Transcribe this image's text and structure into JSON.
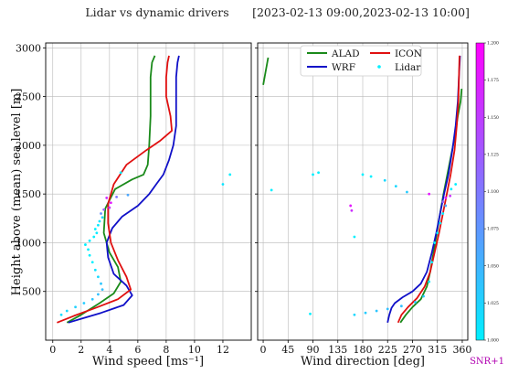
{
  "titles": {
    "left": "Lidar vs dynamic drivers",
    "right": "[2023-02-13 09:00,2023-02-13 10:00]"
  },
  "colors": {
    "ALAD": "#1a8a1a",
    "WRF": "#1010c8",
    "ICON": "#e01010",
    "lidar_low": "#00f0ff",
    "lidar_high": "#ff00ff"
  },
  "chart_data": [
    {
      "type": "line",
      "id": "wind_speed",
      "xlabel": "Wind speed [ms⁻¹]",
      "ylabel": "Height above (mean) sea level [m]",
      "xlim": [
        -0.5,
        14
      ],
      "ylim": [
        0,
        3050
      ],
      "xticks": [
        0,
        2,
        4,
        6,
        8,
        10,
        12
      ],
      "yticks": [
        500,
        1000,
        1500,
        2000,
        2500,
        3000
      ],
      "grid": true,
      "series": [
        {
          "name": "ALAD",
          "points": [
            [
              1.0,
              180
            ],
            [
              2.0,
              260
            ],
            [
              3.3,
              380
            ],
            [
              4.3,
              480
            ],
            [
              4.8,
              600
            ],
            [
              4.6,
              750
            ],
            [
              4.0,
              900
            ],
            [
              3.6,
              1100
            ],
            [
              3.7,
              1350
            ],
            [
              4.4,
              1550
            ],
            [
              5.6,
              1650
            ],
            [
              6.4,
              1700
            ],
            [
              6.7,
              1800
            ],
            [
              6.8,
              2000
            ],
            [
              6.9,
              2300
            ],
            [
              6.9,
              2500
            ],
            [
              6.9,
              2700
            ],
            [
              7.0,
              2850
            ],
            [
              7.2,
              2920
            ]
          ]
        },
        {
          "name": "WRF",
          "points": [
            [
              1.1,
              180
            ],
            [
              2.0,
              220
            ],
            [
              3.4,
              280
            ],
            [
              5.0,
              360
            ],
            [
              5.6,
              460
            ],
            [
              5.2,
              560
            ],
            [
              4.3,
              680
            ],
            [
              3.9,
              850
            ],
            [
              3.8,
              1000
            ],
            [
              4.2,
              1150
            ],
            [
              4.9,
              1270
            ],
            [
              6.0,
              1380
            ],
            [
              6.8,
              1500
            ],
            [
              7.3,
              1600
            ],
            [
              7.8,
              1700
            ],
            [
              8.2,
              1850
            ],
            [
              8.5,
              2000
            ],
            [
              8.7,
              2200
            ],
            [
              8.7,
              2500
            ],
            [
              8.7,
              2700
            ],
            [
              8.8,
              2850
            ],
            [
              8.9,
              2920
            ]
          ]
        },
        {
          "name": "ICON",
          "points": [
            [
              0.3,
              180
            ],
            [
              1.5,
              250
            ],
            [
              3.0,
              330
            ],
            [
              4.6,
              420
            ],
            [
              5.5,
              520
            ],
            [
              5.2,
              650
            ],
            [
              4.6,
              820
            ],
            [
              4.1,
              1000
            ],
            [
              3.9,
              1200
            ],
            [
              3.9,
              1400
            ],
            [
              4.3,
              1600
            ],
            [
              5.2,
              1800
            ],
            [
              6.6,
              1950
            ],
            [
              7.6,
              2050
            ],
            [
              8.4,
              2150
            ],
            [
              8.3,
              2300
            ],
            [
              8.0,
              2500
            ],
            [
              8.0,
              2700
            ],
            [
              8.1,
              2850
            ],
            [
              8.2,
              2920
            ]
          ]
        },
        {
          "name": "Lidar",
          "type": "scatter",
          "color_by": "SNR+1",
          "points": [
            [
              0.6,
              260,
              1.015
            ],
            [
              1.0,
              300,
              1.02
            ],
            [
              1.6,
              340,
              1.025
            ],
            [
              2.2,
              380,
              1.03
            ],
            [
              2.8,
              420,
              1.035
            ],
            [
              3.2,
              470,
              1.04
            ],
            [
              3.5,
              520,
              1.04
            ],
            [
              3.4,
              580,
              1.035
            ],
            [
              3.2,
              650,
              1.02
            ],
            [
              3.0,
              720,
              1.01
            ],
            [
              2.8,
              800,
              1.0
            ],
            [
              2.6,
              870,
              1.0
            ],
            [
              2.5,
              930,
              1.0
            ],
            [
              2.3,
              980,
              1.0
            ],
            [
              2.6,
              1020,
              1.005
            ],
            [
              2.9,
              1060,
              1.0
            ],
            [
              3.1,
              1100,
              1.005
            ],
            [
              3.0,
              1140,
              1.0
            ],
            [
              3.2,
              1180,
              1.005
            ],
            [
              3.3,
              1220,
              1.01
            ],
            [
              3.5,
              1260,
              1.02
            ],
            [
              3.4,
              1300,
              1.08
            ],
            [
              3.6,
              1340,
              1.12
            ],
            [
              4.0,
              1360,
              1.16
            ],
            [
              4.1,
              1410,
              1.18
            ],
            [
              3.8,
              1460,
              1.16
            ],
            [
              4.5,
              1470,
              1.1
            ],
            [
              5.3,
              1490,
              1.06
            ],
            [
              4.8,
              1720,
              1.0
            ],
            [
              12.0,
              1600,
              1.01
            ],
            [
              12.5,
              1700,
              1.0
            ]
          ]
        }
      ]
    },
    {
      "type": "line",
      "id": "wind_direction",
      "xlabel": "Wind direction [deg]",
      "xlim": [
        -10,
        370
      ],
      "ylim": [
        0,
        3050
      ],
      "xticks": [
        0,
        45,
        90,
        135,
        180,
        225,
        270,
        315,
        360
      ],
      "yticks": [
        500,
        1000,
        1500,
        2000,
        2500,
        3000
      ],
      "grid": true,
      "series": [
        {
          "name": "ALAD",
          "points": [
            [
              248,
              180
            ],
            [
              258,
              260
            ],
            [
              270,
              340
            ],
            [
              285,
              420
            ],
            [
              296,
              550
            ],
            [
              302,
              700
            ],
            [
              308,
              900
            ],
            [
              314,
              1100
            ],
            [
              320,
              1300
            ],
            [
              326,
              1500
            ],
            [
              333,
              1700
            ],
            [
              340,
              1900
            ],
            [
              347,
              2100
            ],
            [
              352,
              2300
            ],
            [
              357,
              2450
            ],
            [
              359,
              2580
            ]
          ]
        },
        {
          "name": "WRF",
          "points": [
            [
              225,
              180
            ],
            [
              228,
              260
            ],
            [
              232,
              330
            ],
            [
              238,
              380
            ],
            [
              252,
              440
            ],
            [
              270,
              500
            ],
            [
              285,
              580
            ],
            [
              296,
              700
            ],
            [
              305,
              900
            ],
            [
              313,
              1100
            ],
            [
              320,
              1300
            ],
            [
              327,
              1500
            ],
            [
              335,
              1700
            ],
            [
              342,
              1950
            ],
            [
              348,
              2200
            ],
            [
              352,
              2450
            ],
            [
              354,
              2700
            ],
            [
              356,
              2920
            ]
          ]
        },
        {
          "name": "ICON",
          "points": [
            [
              244,
              180
            ],
            [
              250,
              260
            ],
            [
              262,
              340
            ],
            [
              278,
              430
            ],
            [
              292,
              550
            ],
            [
              302,
              700
            ],
            [
              310,
              900
            ],
            [
              318,
              1100
            ],
            [
              325,
              1300
            ],
            [
              332,
              1500
            ],
            [
              339,
              1700
            ],
            [
              346,
              1950
            ],
            [
              350,
              2200
            ],
            [
              353,
              2450
            ],
            [
              354,
              2700
            ],
            [
              355,
              2920
            ]
          ]
        },
        {
          "name": "ALAD-upper",
          "color": "ALAD",
          "points": [
            [
              0,
              2620
            ],
            [
              9,
              2900
            ]
          ]
        },
        {
          "name": "Lidar",
          "type": "scatter",
          "color_by": "SNR+1",
          "points": [
            [
              85,
              270,
              1.0
            ],
            [
              165,
              260,
              1.02
            ],
            [
              185,
              280,
              1.03
            ],
            [
              205,
              300,
              1.035
            ],
            [
              225,
              320,
              1.04
            ],
            [
              250,
              350,
              1.04
            ],
            [
              275,
              390,
              1.035
            ],
            [
              290,
              450,
              1.03
            ],
            [
              300,
              600,
              1.01
            ],
            [
              305,
              800,
              1.0
            ],
            [
              310,
              1000,
              1.0
            ],
            [
              315,
              1100,
              1.0
            ],
            [
              320,
              1200,
              1.0
            ],
            [
              325,
              1300,
              1.0
            ],
            [
              330,
              1380,
              1.06
            ],
            [
              325,
              1420,
              1.12
            ],
            [
              330,
              1460,
              1.18
            ],
            [
              338,
              1480,
              1.16
            ],
            [
              160,
              1330,
              1.16
            ],
            [
              158,
              1380,
              1.18
            ],
            [
              165,
              1060,
              1.0
            ],
            [
              15,
              1540,
              1.0
            ],
            [
              90,
              1700,
              1.0
            ],
            [
              100,
              1720,
              1.0
            ],
            [
              180,
              1700,
              1.0
            ],
            [
              195,
              1680,
              1.0
            ],
            [
              220,
              1640,
              1.02
            ],
            [
              240,
              1580,
              1.02
            ],
            [
              260,
              1520,
              1.03
            ],
            [
              300,
              1500,
              1.18
            ],
            [
              340,
              1550,
              1.0
            ],
            [
              348,
              1600,
              1.0
            ]
          ]
        }
      ]
    }
  ],
  "legend": {
    "placement": "top-center of right panel",
    "entries": [
      "ALAD",
      "ICON",
      "WRF",
      "Lidar"
    ]
  },
  "colorbar": {
    "label": "SNR+1",
    "range": [
      1.0,
      1.2
    ],
    "ticks": [
      "1.000",
      "1.025",
      "1.050",
      "1.075",
      "1.100",
      "1.125",
      "1.150",
      "1.175",
      "1.200"
    ]
  }
}
